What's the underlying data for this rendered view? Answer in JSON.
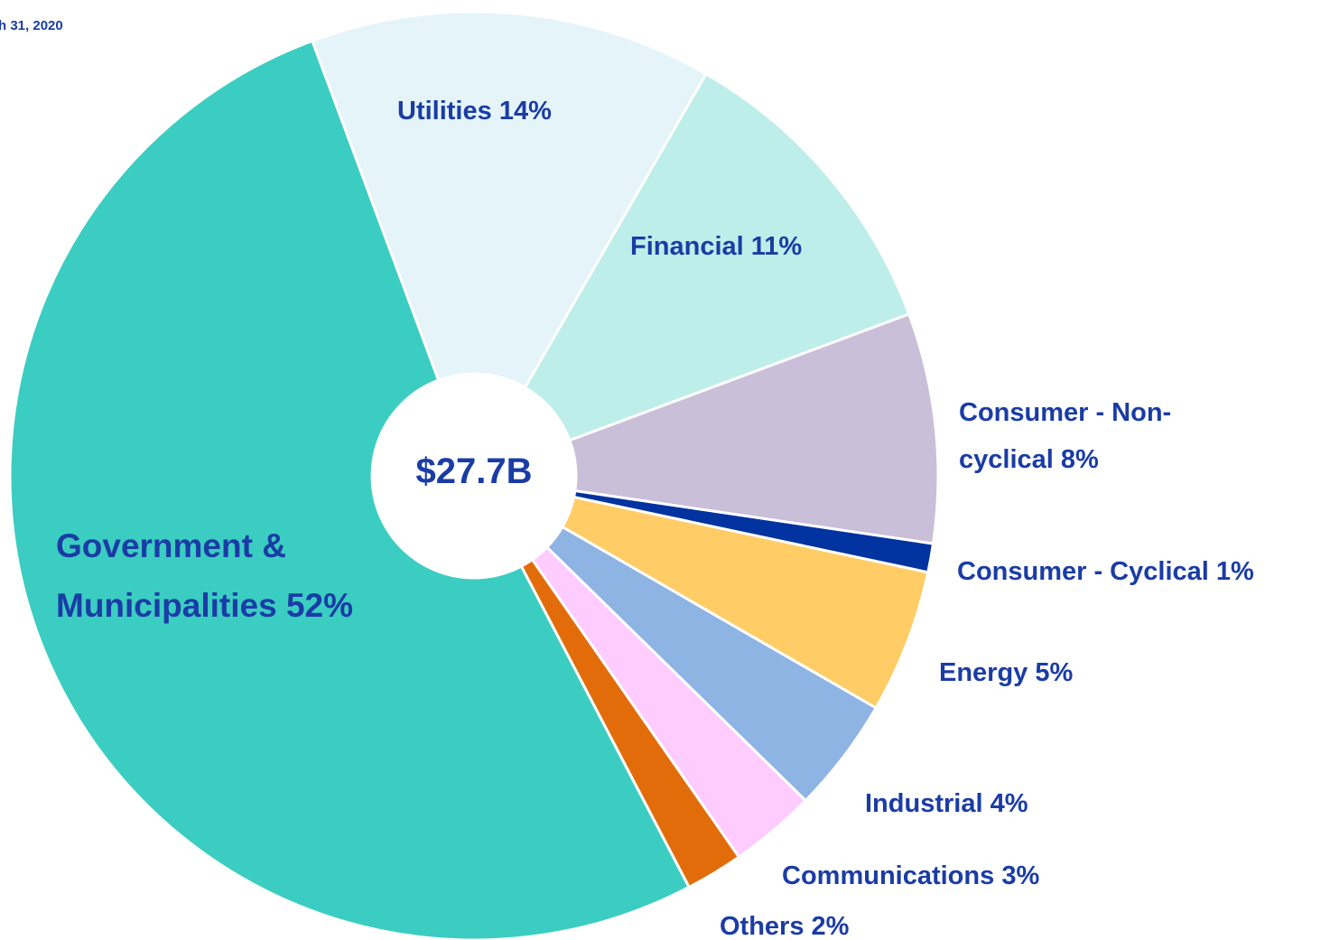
{
  "chart_data": {
    "type": "pie",
    "title": "h 31, 2020",
    "center_label": "$27.7B",
    "categories": [
      "Utilities",
      "Financial",
      "Consumer - Non-cyclical",
      "Consumer - Cyclical",
      "Energy",
      "Industrial",
      "Communications",
      "Others",
      "Government & Municipalities"
    ],
    "values": [
      14,
      11,
      8,
      1,
      5,
      4,
      3,
      2,
      52
    ],
    "value_labels": [
      "14%",
      "11%",
      "8%",
      "1%",
      "5%",
      "4%",
      "3%",
      "2%",
      "52%"
    ],
    "colors": [
      "#e4f4f9",
      "#bdeeea",
      "#c9bfd9",
      "#0033a0",
      "#ffcc66",
      "#8eb4e3",
      "#ffccff",
      "#e36c0a",
      "#3bcdc2"
    ]
  }
}
